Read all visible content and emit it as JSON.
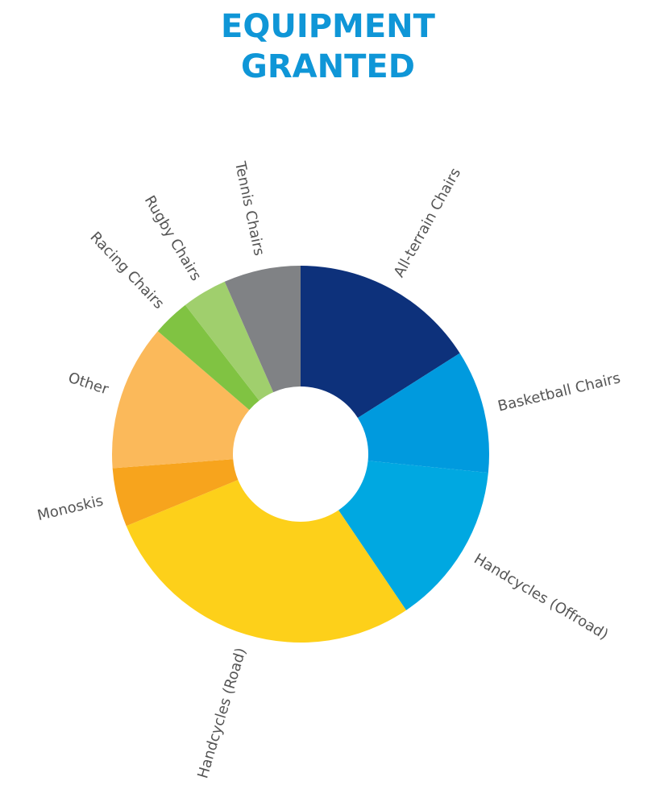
{
  "title": {
    "line1": "EQUIPMENT",
    "line2": "GRANTED",
    "color": "#0f96d7"
  },
  "chart_data": {
    "type": "pie",
    "variant": "donut",
    "categories": [
      "All-terrain Chairs",
      "Basketball Chairs",
      "Handcycles (Offroad)",
      "Handcycles (Road)",
      "Monoskis",
      "Other",
      "Racing Chairs",
      "Rugby Chairs",
      "Tennis Chairs"
    ],
    "values": [
      16.5,
      10.9,
      14.4,
      29.1,
      5.2,
      12.9,
      3.3,
      4.0,
      6.8
    ],
    "unit": "%",
    "colors": [
      "#0d317b",
      "#009ade",
      "#00a8e1",
      "#fdd01a",
      "#f7a41d",
      "#fbb95a",
      "#80c342",
      "#a0cf6d",
      "#808285"
    ],
    "label_color": "#555555",
    "start_angle": "12 o'clock",
    "direction": "clockwise"
  }
}
